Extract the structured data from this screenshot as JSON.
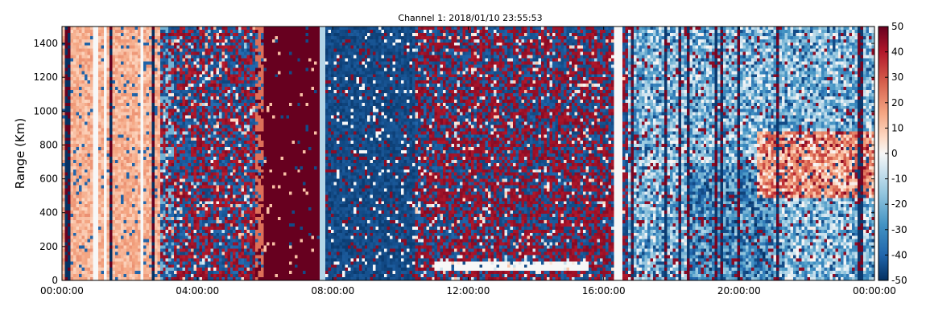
{
  "chart_data": {
    "type": "heatmap",
    "title": "Channel 1: 2018/01/10 23:55:53",
    "xlabel": "",
    "ylabel": "Range (Km)",
    "x_ticks": [
      "00:00:00",
      "04:00:00",
      "08:00:00",
      "12:00:00",
      "16:00:00",
      "20:00:00",
      "00:00:00"
    ],
    "x_range": [
      "2018/01/10 00:00:00",
      "2018/01/11 00:00:00"
    ],
    "y_ticks": [
      0,
      200,
      400,
      600,
      800,
      1000,
      1200,
      1400
    ],
    "ylim": [
      0,
      1500
    ],
    "colorbar": {
      "ticks": [
        50,
        40,
        30,
        20,
        10,
        0,
        -10,
        -20,
        -30,
        -40,
        -50
      ],
      "range": [
        -50,
        50
      ],
      "colormap": "RdBu_r",
      "colors": {
        "high": "#67001f",
        "mid": "#f7f7f7",
        "low": "#053061"
      }
    },
    "grid": false,
    "regions": [
      {
        "time": [
          "00:00",
          "02:50"
        ],
        "description": "sparse vertical streaks, mostly light red/pale (values ~ +5 to +15)"
      },
      {
        "time": [
          "02:50",
          "05:40"
        ],
        "description": "mixed noise, predominantly dark blue and dark red"
      },
      {
        "time": [
          "05:40",
          "07:35"
        ],
        "description": "solid dark red band (values ~ +50)"
      },
      {
        "time": [
          "07:35",
          "10:30"
        ],
        "description": "predominantly dark blue (values ~ -50)"
      },
      {
        "time": [
          "10:30",
          "16:40"
        ],
        "description": "mixed dark red/dark blue noise, pale band near 100 Km"
      },
      {
        "time": [
          "16:40",
          "24:00"
        ],
        "description": "medium blue and light red structures (values ~ -30 to +20)"
      }
    ]
  }
}
